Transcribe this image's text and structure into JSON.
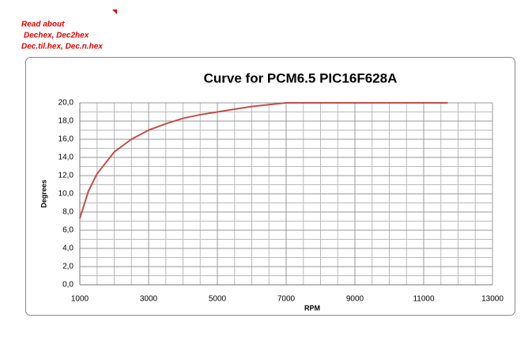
{
  "notes": [
    "Read about",
    "Dechex, Dec2hex",
    "Dec.til.hex, Dec.n.hex"
  ],
  "chart_data": {
    "type": "line",
    "title": "Curve for PCM6.5 PIC16F628A",
    "x_label": "RPM",
    "y_label": "Degrees",
    "x": [
      1000,
      1250,
      1500,
      2000,
      2500,
      3000,
      3500,
      4000,
      4500,
      5000,
      5500,
      6000,
      6500,
      7000,
      8000,
      9000,
      10000,
      11000,
      11700
    ],
    "values": [
      7.3,
      10.3,
      12.2,
      14.6,
      16.0,
      17.0,
      17.7,
      18.3,
      18.7,
      19.0,
      19.3,
      19.6,
      19.8,
      20.0,
      20.0,
      20.0,
      20.0,
      20.0,
      20.0
    ],
    "color": "#c0504d",
    "xlim": [
      1000,
      13000
    ],
    "xticks": [
      1000,
      3000,
      5000,
      7000,
      9000,
      11000,
      13000
    ],
    "ylim": [
      0,
      20
    ],
    "yticks": [
      {
        "value": 0,
        "label": "0,0"
      },
      {
        "value": 2,
        "label": "2,0"
      },
      {
        "value": 4,
        "label": "4,0"
      },
      {
        "value": 6,
        "label": "6,0"
      },
      {
        "value": 8,
        "label": "8,0"
      },
      {
        "value": 10,
        "label": "10,0"
      },
      {
        "value": 12,
        "label": "12,0"
      },
      {
        "value": 14,
        "label": "14,0"
      },
      {
        "value": 16,
        "label": "16,0"
      },
      {
        "value": 18,
        "label": "18,0"
      },
      {
        "value": 20,
        "label": "20,0"
      }
    ],
    "grid": true
  }
}
